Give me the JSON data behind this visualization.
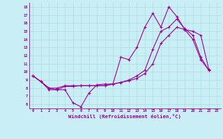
{
  "xlabel": "Windchill (Refroidissement éolien,°C)",
  "background_color": "#caeef5",
  "line_color": "#990099",
  "grid_color": "#aadddd",
  "xmin": -0.5,
  "xmax": 23.5,
  "ymin": 5.5,
  "ymax": 18.5,
  "yticks": [
    6,
    7,
    8,
    9,
    10,
    11,
    12,
    13,
    14,
    15,
    16,
    17,
    18
  ],
  "xticks": [
    0,
    1,
    2,
    3,
    4,
    5,
    6,
    7,
    8,
    9,
    10,
    11,
    12,
    13,
    14,
    15,
    16,
    17,
    18,
    19,
    20,
    21,
    22,
    23
  ],
  "series": [
    {
      "x": [
        0,
        1,
        2,
        3,
        4,
        5,
        6,
        7,
        8,
        9,
        10,
        11,
        12,
        13,
        14,
        15,
        16,
        17,
        18,
        19,
        20,
        21,
        22
      ],
      "y": [
        9.5,
        8.8,
        8.0,
        7.8,
        7.8,
        6.2,
        5.7,
        7.4,
        8.4,
        8.5,
        8.5,
        11.8,
        11.5,
        13.0,
        15.5,
        17.2,
        15.5,
        18.0,
        16.8,
        15.2,
        14.0,
        11.5,
        10.2
      ]
    },
    {
      "x": [
        0,
        1,
        2,
        3,
        4,
        5,
        6,
        7,
        8,
        9,
        10,
        11,
        12,
        13,
        14,
        15,
        16,
        17,
        18,
        19,
        20,
        21,
        22
      ],
      "y": [
        9.5,
        8.8,
        8.0,
        8.0,
        8.3,
        8.3,
        8.3,
        8.3,
        8.3,
        8.3,
        8.5,
        8.7,
        8.9,
        9.2,
        9.8,
        11.0,
        13.5,
        14.5,
        15.5,
        15.2,
        15.0,
        14.5,
        10.3
      ]
    },
    {
      "x": [
        0,
        1,
        2,
        3,
        4,
        5,
        6,
        7,
        8,
        9,
        10,
        11,
        12,
        13,
        14,
        15,
        16,
        17,
        18,
        19,
        20,
        21,
        22
      ],
      "y": [
        9.5,
        8.8,
        7.8,
        7.8,
        8.2,
        8.2,
        8.3,
        8.3,
        8.3,
        8.3,
        8.5,
        8.7,
        9.0,
        9.5,
        10.2,
        12.8,
        15.0,
        15.5,
        16.5,
        15.3,
        14.5,
        11.8,
        10.2
      ]
    }
  ]
}
